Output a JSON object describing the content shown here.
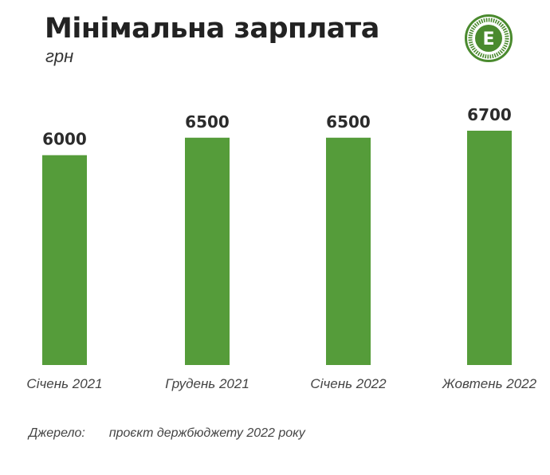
{
  "header": {
    "title": "Мінімальна зарплата",
    "unit": "грн"
  },
  "chart_data": {
    "type": "bar",
    "title": "Мінімальна зарплата",
    "ylabel": "грн",
    "xlabel": "",
    "categories": [
      "Січень 2021",
      "Грудень 2021",
      "Січень 2022",
      "Жовтень 2022"
    ],
    "values": [
      6000,
      6500,
      6500,
      6700
    ],
    "value_labels": [
      "6000",
      "6500",
      "6500",
      "6700"
    ],
    "ylim": [
      0,
      6700
    ],
    "grid": false,
    "bar_color": "#559c3a"
  },
  "source": {
    "label": "Джерело:",
    "text": "проєкт держбюджету 2022 року"
  },
  "logo": {
    "icon": "economic-truth-logo-icon",
    "letter": "Е",
    "color": "#4a8a2e"
  }
}
